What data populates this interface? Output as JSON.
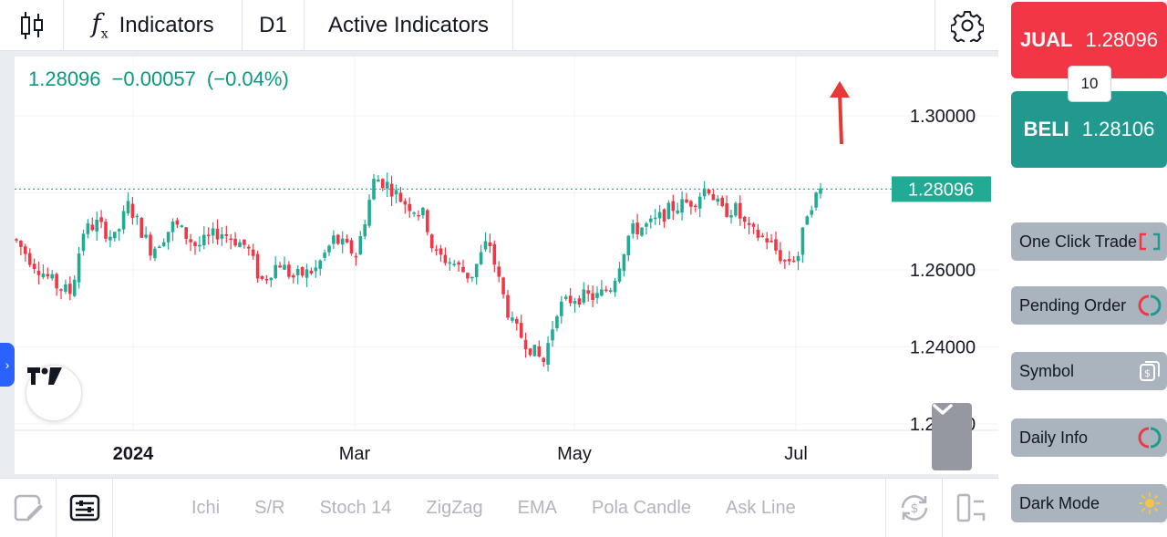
{
  "toolbar": {
    "chart_type_icon": "candlestick-icon",
    "indicators_icon": "fx-icon",
    "indicators_label": "Indicators",
    "timeframe": "D1",
    "active_indicators_label": "Active Indicators",
    "settings_icon": "gear-icon"
  },
  "legend": {
    "price": "1.28096",
    "change": "−0.00057",
    "change_pct": "(−0.04%)"
  },
  "chart_data": {
    "type": "candlestick",
    "x_labels": [
      "2024",
      "Mar",
      "May",
      "Jul"
    ],
    "y_ticks": [
      "1.30000",
      "1.28096",
      "1.26000",
      "1.24000",
      "1.22000"
    ],
    "last_price": "1.28096",
    "ylim": [
      1.22,
      1.303
    ],
    "grid": true,
    "colors": {
      "up": "#22ab94",
      "down": "#f23645",
      "price_line": "#22ab94"
    },
    "annotation": "red-up-arrow"
  },
  "bottombar": {
    "drawing_icon": "drawing-tools-icon",
    "layout_icon": "indicator-panel-icon",
    "items": [
      "Ichi",
      "S/R",
      "Stoch 14",
      "ZigZag",
      "EMA",
      "Pola Candle",
      "Ask Line"
    ],
    "sync_icon": "currency-sync-icon",
    "layout_switch_icon": "layout-switch-icon"
  },
  "panel": {
    "sell_label": "JUAL",
    "sell_price": "1.28096",
    "lot": "10",
    "buy_label": "BELI",
    "buy_price": "1.28106",
    "buttons": [
      {
        "label": "One Click Trade",
        "icon": "one-click-icon"
      },
      {
        "label": "Pending Order",
        "icon": "pending-order-icon"
      },
      {
        "label": "Symbol",
        "icon": "symbol-icon"
      },
      {
        "label": "Daily Info",
        "icon": "daily-info-icon"
      },
      {
        "label": "Dark Mode",
        "icon": "sun-icon"
      }
    ]
  },
  "colors": {
    "sell": "#f23645",
    "buy": "#22998e",
    "accent": "#2962ff"
  }
}
